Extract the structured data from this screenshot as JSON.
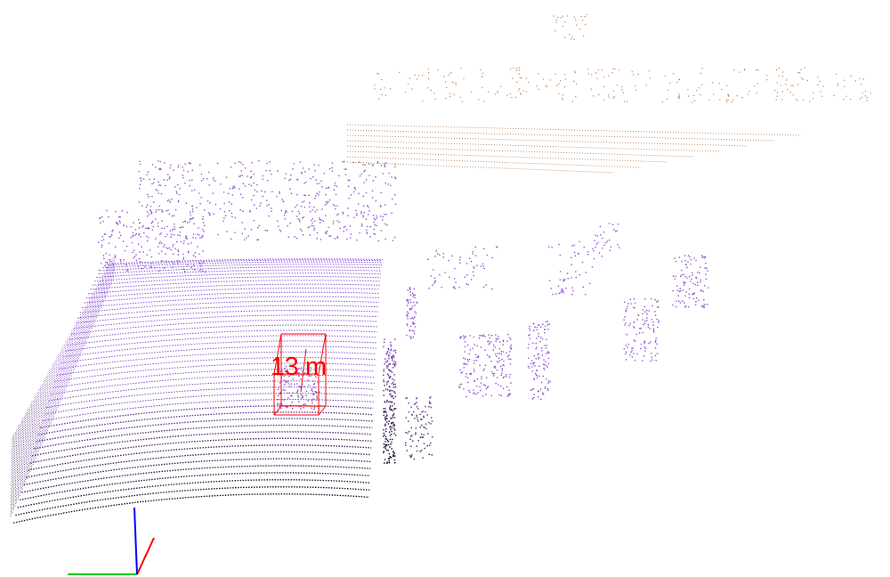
{
  "viewer": {
    "background": "#ffffff",
    "point_colors": {
      "near": "#1a1020",
      "mid": "#8a4fd0",
      "far": "#c07a4a"
    },
    "detection": {
      "label": "13 m",
      "color": "#ff0000"
    },
    "axes": {
      "x_color": "#ff0000",
      "y_color": "#00cc00",
      "z_color": "#0000ff"
    }
  }
}
